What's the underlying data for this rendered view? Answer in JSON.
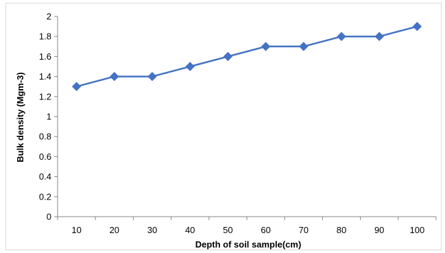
{
  "chart_data": {
    "type": "line",
    "title": "",
    "xlabel": "Depth of soil sample(cm)",
    "ylabel": "Bulk density (Mgm-3)",
    "categories": [
      "10",
      "20",
      "30",
      "40",
      "50",
      "60",
      "70",
      "80",
      "90",
      "100"
    ],
    "series": [
      {
        "values": [
          1.3,
          1.4,
          1.4,
          1.5,
          1.6,
          1.7,
          1.7,
          1.8,
          1.8,
          1.9
        ]
      }
    ],
    "ylim": [
      0,
      2
    ],
    "yticks": [
      "0",
      "0.2",
      "0.4",
      "0.6",
      "0.8",
      "1",
      "1.2",
      "1.4",
      "1.6",
      "1.8",
      "2"
    ],
    "grid": false,
    "legend": "none",
    "marker": "diamond",
    "colors": {
      "series": "#4472C4",
      "axis": "#868686"
    }
  }
}
